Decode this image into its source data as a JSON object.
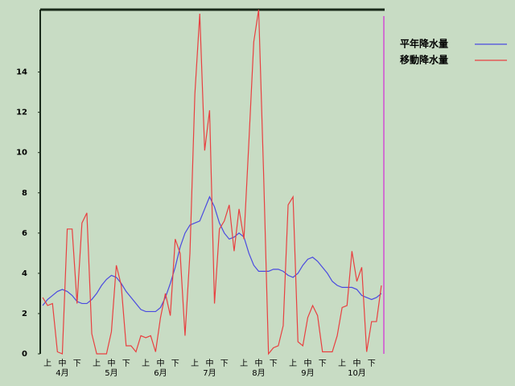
{
  "chart_data": {
    "type": "line",
    "categories": [
      null,
      "上",
      null,
      null,
      "中",
      null,
      null,
      "下",
      null,
      null,
      null,
      "上",
      null,
      null,
      "中",
      null,
      null,
      "下",
      null,
      null,
      null,
      "上",
      null,
      null,
      "中",
      null,
      null,
      "下",
      null,
      null,
      null,
      "上",
      null,
      null,
      "中",
      null,
      null,
      "下",
      null,
      null,
      null,
      "上",
      null,
      null,
      "中",
      null,
      null,
      "下",
      null,
      null,
      null,
      "上",
      null,
      null,
      "中",
      null,
      null,
      "下",
      null,
      null,
      null,
      "上",
      null,
      null,
      "中",
      null,
      null,
      "下",
      null,
      null
    ],
    "months": [
      null,
      null,
      null,
      null,
      "4月",
      null,
      null,
      null,
      null,
      null,
      null,
      null,
      null,
      null,
      "5月",
      null,
      null,
      null,
      null,
      null,
      null,
      null,
      null,
      null,
      "6月",
      null,
      null,
      null,
      null,
      null,
      null,
      null,
      null,
      null,
      "7月",
      null,
      null,
      null,
      null,
      null,
      null,
      null,
      null,
      null,
      "8月",
      null,
      null,
      null,
      null,
      null,
      null,
      null,
      null,
      null,
      "9月",
      null,
      null,
      null,
      null,
      null,
      null,
      null,
      null,
      null,
      "10月",
      null,
      null,
      null,
      null,
      null
    ],
    "series": [
      {
        "name": "平年降水量",
        "color": "#4a4ae0",
        "values": [
          2.4,
          2.7,
          2.9,
          3.1,
          3.2,
          3.1,
          2.9,
          2.6,
          2.5,
          2.5,
          2.7,
          3.0,
          3.4,
          3.7,
          3.9,
          3.8,
          3.5,
          3.1,
          2.8,
          2.5,
          2.2,
          2.1,
          2.1,
          2.1,
          2.3,
          2.8,
          3.5,
          4.3,
          5.3,
          6.0,
          6.4,
          6.5,
          6.6,
          7.2,
          7.8,
          7.3,
          6.5,
          6.0,
          5.7,
          5.8,
          6.0,
          5.8,
          5.0,
          4.4,
          4.1,
          4.1,
          4.1,
          4.2,
          4.2,
          4.1,
          3.9,
          3.8,
          4.0,
          4.4,
          4.7,
          4.8,
          4.6,
          4.3,
          4.0,
          3.6,
          3.4,
          3.3,
          3.3,
          3.3,
          3.2,
          2.9,
          2.8,
          2.7,
          2.8,
          3.0
        ]
      },
      {
        "name": "移動降水量",
        "color": "#e84040",
        "values": [
          2.8,
          2.4,
          2.5,
          0.1,
          0.0,
          6.2,
          6.2,
          2.5,
          6.5,
          7.0,
          1.0,
          0.0,
          0.0,
          0.0,
          1.1,
          4.4,
          3.4,
          0.4,
          0.4,
          0.1,
          0.9,
          0.8,
          0.9,
          0.1,
          1.8,
          3.0,
          1.9,
          5.7,
          5.0,
          0.9,
          5.0,
          12.9,
          16.9,
          10.1,
          12.1,
          2.5,
          6.2,
          6.6,
          7.4,
          5.1,
          7.2,
          5.7,
          10.5,
          15.5,
          17.1,
          9.0,
          0.0,
          0.3,
          0.4,
          1.4,
          7.4,
          7.8,
          0.6,
          0.4,
          1.8,
          2.4,
          1.9,
          0.1,
          0.1,
          0.1,
          0.9,
          2.3,
          2.4,
          5.1,
          3.6,
          4.3,
          0.1,
          1.6,
          1.6,
          3.4
        ]
      }
    ],
    "ylim": [
      0,
      17.1
    ],
    "yticks": [
      0,
      2,
      4,
      6,
      8,
      10,
      12,
      14
    ],
    "grid": false
  }
}
